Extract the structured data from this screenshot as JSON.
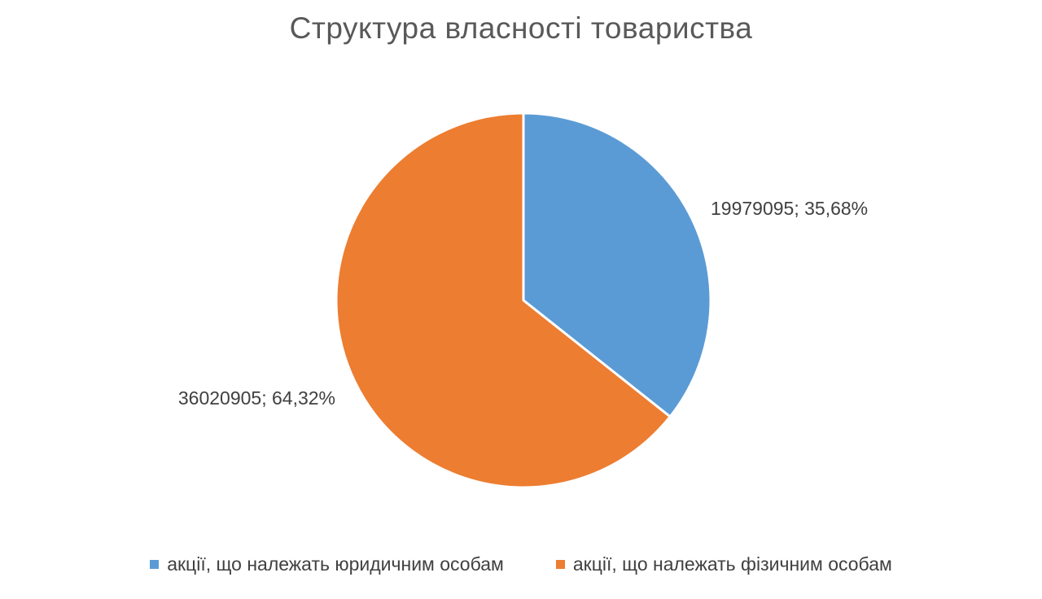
{
  "chart_data": {
    "type": "pie",
    "title": "Структура власності товариства",
    "slices": [
      {
        "name": "акції, що належать юридичним особам",
        "value": 19979095,
        "percent": 35.68,
        "label": "19979095; 35,68%",
        "color": "#5b9bd5"
      },
      {
        "name": "акції, що належать фізичним особам",
        "value": 36020905,
        "percent": 64.32,
        "label": "36020905; 64,32%",
        "color": "#ed7d31"
      }
    ],
    "legend_position": "bottom",
    "data_labels": "outside"
  }
}
